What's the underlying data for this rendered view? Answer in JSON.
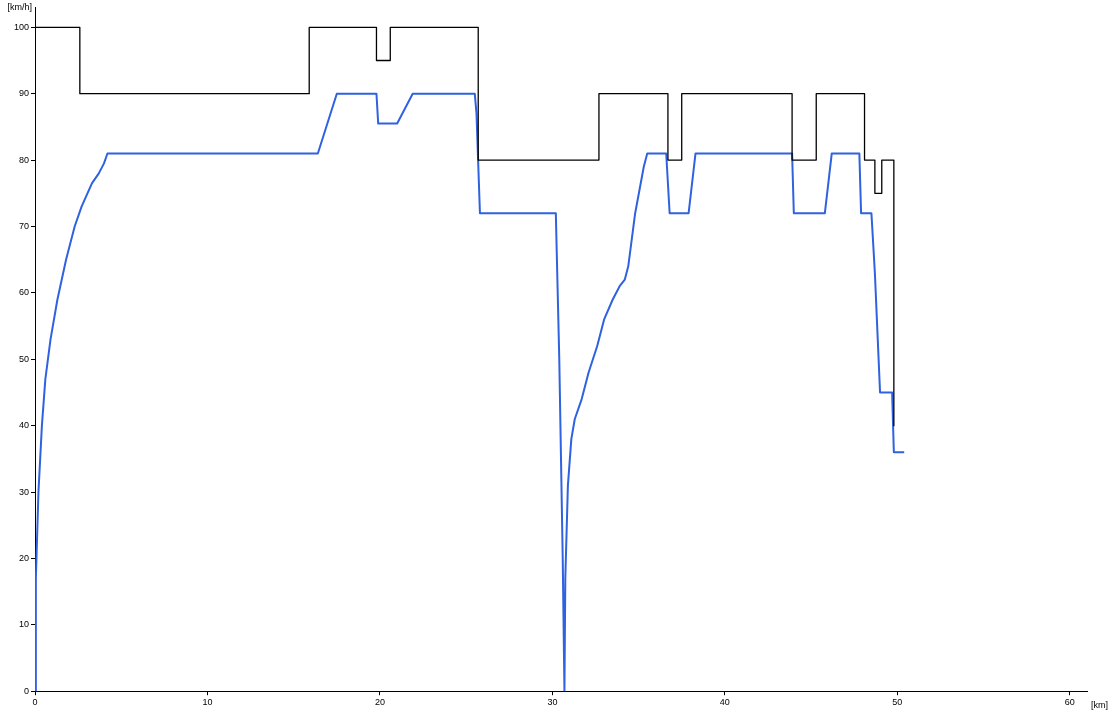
{
  "chart_data": {
    "type": "line",
    "xlabel": "[km]",
    "ylabel": "[km/h]",
    "xlim": [
      0,
      61
    ],
    "ylim": [
      0,
      103
    ],
    "xticks": [
      0,
      10,
      20,
      30,
      40,
      50,
      60
    ],
    "yticks": [
      0,
      10,
      20,
      30,
      40,
      50,
      60,
      70,
      80,
      90,
      100
    ],
    "grid": false,
    "legend": false,
    "marker": "none",
    "line_style": "solid",
    "series": [
      {
        "color": "#000000",
        "x": [
          0,
          2.6,
          2.6,
          15.9,
          15.9,
          19.8,
          19.8,
          20.6,
          20.6,
          25.7,
          25.7,
          32.7,
          32.7,
          36.7,
          36.7,
          37.5,
          37.5,
          43.9,
          43.9,
          45.3,
          45.3,
          48.1,
          48.1,
          48.7,
          48.7,
          49.1,
          49.1,
          49.8,
          49.8
        ],
        "values": [
          100,
          100,
          90,
          90,
          100,
          100,
          95,
          95,
          100,
          100,
          80,
          80,
          90,
          90,
          80,
          80,
          90,
          90,
          80,
          80,
          90,
          90,
          80,
          80,
          75,
          75,
          80,
          80,
          40
        ]
      },
      {
        "color": "#2f62e0",
        "x": [
          0,
          0.05,
          0.2,
          0.4,
          0.6,
          0.9,
          1.3,
          1.8,
          2.3,
          2.7,
          3.3,
          3.7,
          4.0,
          4.2,
          16.4,
          17.5,
          19.8,
          19.9,
          21.0,
          21.9,
          25.5,
          25.6,
          25.8,
          30.2,
          30.4,
          30.6,
          30.7,
          30.75,
          30.9,
          31.1,
          31.3,
          31.7,
          32.1,
          32.6,
          33.0,
          33.5,
          33.9,
          34.2,
          34.4,
          34.8,
          35.3,
          35.5,
          36.6,
          36.8,
          37.9,
          38.3,
          43.9,
          44.0,
          45.8,
          46.2,
          47.8,
          47.9,
          48.5,
          48.7,
          49.0,
          49.7,
          49.8,
          50.4
        ],
        "values": [
          0,
          17,
          30,
          40,
          47,
          53,
          59,
          65,
          70,
          73,
          76.5,
          78,
          79.5,
          81,
          81,
          90,
          90,
          85.5,
          85.5,
          90,
          90,
          87,
          72,
          72,
          50,
          20,
          0,
          17,
          31,
          38,
          41,
          44,
          48,
          52,
          56,
          59,
          61,
          62,
          64,
          72,
          79,
          81,
          81,
          72,
          72,
          81,
          81,
          72,
          72,
          81,
          81,
          72,
          72,
          63,
          45,
          45,
          36,
          36
        ]
      }
    ]
  }
}
